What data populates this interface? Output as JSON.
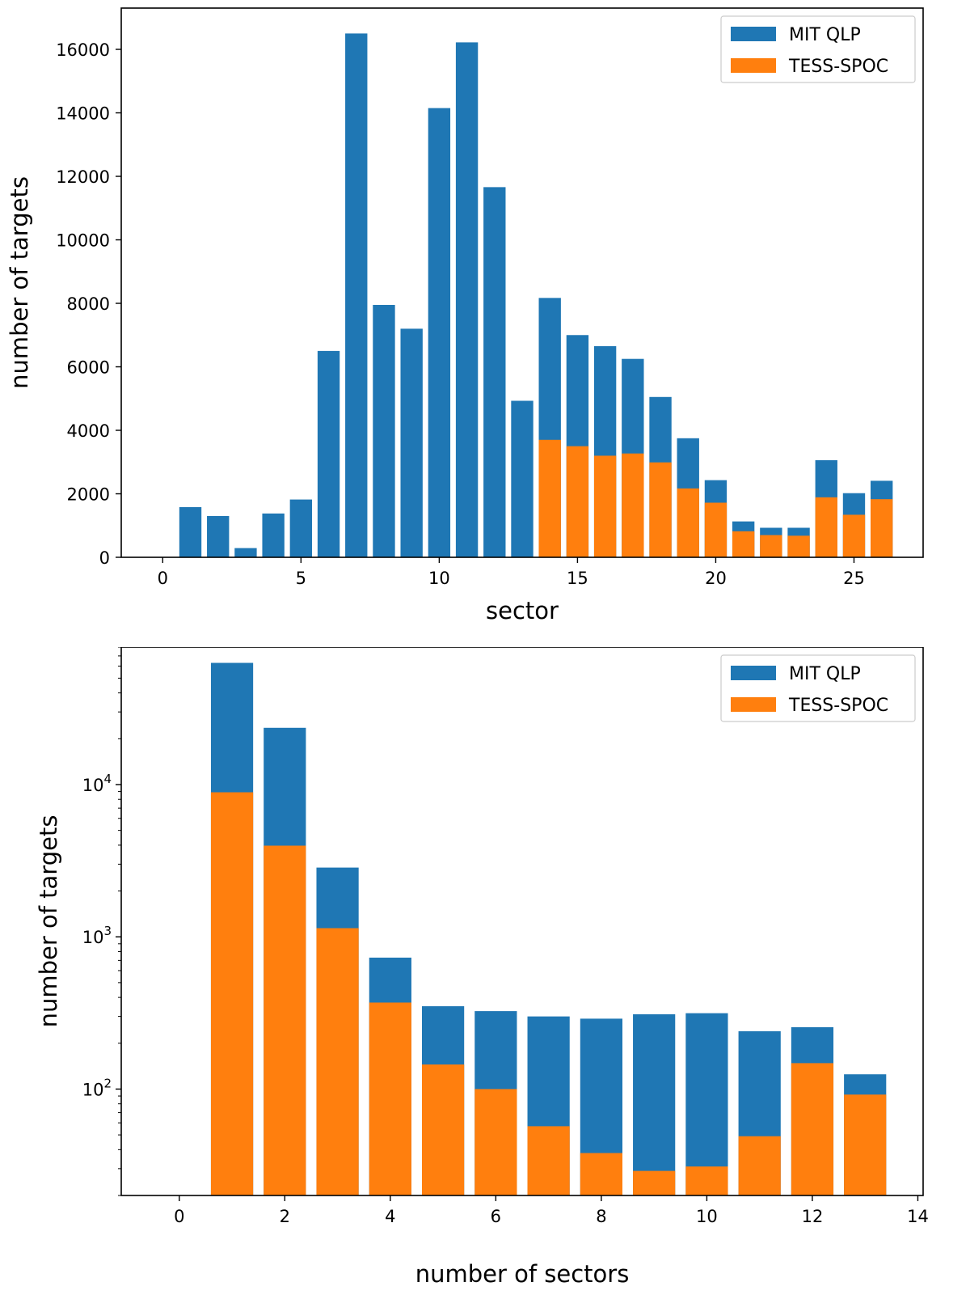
{
  "chart_data": [
    {
      "type": "bar",
      "stacked": false,
      "overlay": true,
      "xlabel": "sector",
      "ylabel": "number of targets",
      "xlim": [
        -1.5,
        27.5
      ],
      "ylim": [
        0,
        17300
      ],
      "xticks": [
        0,
        5,
        10,
        15,
        20,
        25
      ],
      "yticks": [
        0,
        2000,
        4000,
        6000,
        8000,
        10000,
        12000,
        14000,
        16000
      ],
      "legend_position": "top-right",
      "colors": {
        "MIT QLP": "#1f77b4",
        "TESS-SPOC": "#ff7f0e"
      },
      "x": [
        1,
        2,
        3,
        4,
        5,
        6,
        7,
        8,
        9,
        10,
        11,
        12,
        13,
        14,
        15,
        16,
        17,
        18,
        19,
        20,
        21,
        22,
        23,
        24,
        25,
        26
      ],
      "series": [
        {
          "name": "MIT QLP",
          "values": [
            1580,
            1300,
            290,
            1380,
            1820,
            6500,
            16500,
            7950,
            7200,
            14150,
            16220,
            11660,
            4930,
            8170,
            7000,
            6650,
            6250,
            5050,
            3750,
            2430,
            1130,
            930,
            930,
            3060,
            2020,
            2410
          ]
        },
        {
          "name": "TESS-SPOC",
          "values": [
            0,
            0,
            0,
            0,
            0,
            0,
            0,
            0,
            0,
            0,
            0,
            0,
            0,
            3700,
            3500,
            3200,
            3270,
            2990,
            2170,
            1720,
            820,
            700,
            680,
            1890,
            1340,
            1830
          ]
        }
      ]
    },
    {
      "type": "bar",
      "stacked": false,
      "overlay": true,
      "xlabel": "number of sectors",
      "ylabel": "number of targets",
      "yscale": "log",
      "xlim": [
        -1.1,
        14.1
      ],
      "ylim": [
        20,
        80000
      ],
      "xticks": [
        0,
        2,
        4,
        6,
        8,
        10,
        12,
        14
      ],
      "yticks": [
        {
          "value": 100,
          "base": "10",
          "exp": "2"
        },
        {
          "value": 1000,
          "base": "10",
          "exp": "3"
        },
        {
          "value": 10000,
          "base": "10",
          "exp": "4"
        }
      ],
      "legend_position": "top-right",
      "colors": {
        "MIT QLP": "#1f77b4",
        "TESS-SPOC": "#ff7f0e"
      },
      "x": [
        1,
        2,
        3,
        4,
        5,
        6,
        7,
        8,
        9,
        10,
        11,
        12,
        13
      ],
      "series": [
        {
          "name": "MIT QLP",
          "values": [
            63000,
            23600,
            2850,
            730,
            350,
            325,
            300,
            290,
            310,
            315,
            240,
            255,
            125
          ]
        },
        {
          "name": "TESS-SPOC",
          "values": [
            8900,
            3970,
            1140,
            370,
            145,
            100,
            57,
            38,
            29,
            31,
            49,
            148,
            92
          ]
        }
      ]
    }
  ]
}
